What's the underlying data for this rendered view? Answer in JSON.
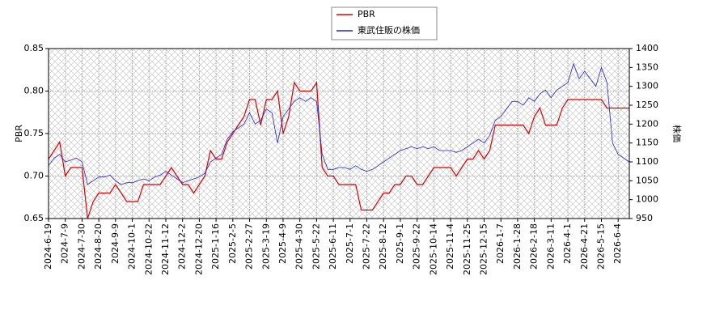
{
  "chart_data": {
    "type": "line",
    "categories": [
      "2024-6-19",
      null,
      null,
      "2024-7-9",
      null,
      null,
      "2024-7-30",
      null,
      null,
      "2024-8-20",
      null,
      null,
      "2024-9-9",
      null,
      null,
      "2024-10-1",
      null,
      null,
      "2024-10-22",
      null,
      null,
      "2024-11-12",
      null,
      null,
      "2024-12-2",
      null,
      null,
      "2024-12-20",
      null,
      null,
      "2025-1-16",
      null,
      null,
      "2025-2-5",
      null,
      null,
      "2025-2-27",
      null,
      null,
      "2025-3-19",
      null,
      null,
      "2025-4-9",
      null,
      null,
      "2025-4-30",
      null,
      null,
      "2025-5-22",
      null,
      null,
      "2025-6-11",
      null,
      null,
      "2025-7-1",
      null,
      null,
      "2025-7-22",
      null,
      null,
      "2025-8-12",
      null,
      null,
      "2025-9-1",
      null,
      null,
      "2025-9-22",
      null,
      null,
      "2025-10-14",
      null,
      null,
      "2025-11-4",
      null,
      null,
      "2025-11-25",
      null,
      null,
      "2025-12-15",
      null,
      null,
      "2026-1-7",
      null,
      null,
      "2026-1-28",
      null,
      null,
      "2026-2-18",
      null,
      null,
      "2026-3-11",
      null,
      null,
      "2026-4-1",
      null,
      null,
      "2026-4-21",
      null,
      null,
      "2026-5-15",
      null,
      null,
      "2026-6-4",
      null,
      null
    ],
    "series": [
      {
        "name": "PBR",
        "color": "#dd0000",
        "values": [
          0.72,
          0.73,
          0.74,
          0.7,
          0.71,
          0.71,
          0.71,
          0.65,
          0.67,
          0.68,
          0.68,
          0.68,
          0.69,
          0.68,
          0.67,
          0.67,
          0.67,
          0.69,
          0.69,
          0.69,
          0.69,
          0.7,
          0.71,
          0.7,
          0.69,
          0.69,
          0.68,
          0.69,
          0.7,
          0.73,
          0.72,
          0.72,
          0.74,
          0.75,
          0.76,
          0.77,
          0.79,
          0.79,
          0.76,
          0.79,
          0.79,
          0.8,
          0.75,
          0.77,
          0.81,
          0.8,
          0.8,
          0.8,
          0.81,
          0.71,
          0.7,
          0.7,
          0.69,
          0.69,
          0.69,
          0.69,
          0.66,
          0.66,
          0.66,
          0.67,
          0.68,
          0.68,
          0.69,
          0.69,
          0.7,
          0.7,
          0.69,
          0.69,
          0.7,
          0.71,
          0.71,
          0.71,
          0.71,
          0.7,
          0.71,
          0.72,
          0.72,
          0.73,
          0.72,
          0.73,
          0.76,
          0.76,
          0.76,
          0.76,
          0.76,
          0.76,
          0.75,
          0.77,
          0.78,
          0.76,
          0.76,
          0.76,
          0.78,
          0.79,
          0.79,
          0.79,
          0.79,
          0.79,
          0.79,
          0.79,
          0.78,
          0.78,
          0.78,
          0.78,
          0.78
        ]
      },
      {
        "name": "東武住販の株価",
        "color": "#2222dd",
        "axis": "y2",
        "values": [
          1090,
          1110,
          1120,
          1100,
          1105,
          1110,
          1100,
          1040,
          1050,
          1060,
          1060,
          1065,
          1050,
          1040,
          1045,
          1045,
          1050,
          1055,
          1050,
          1060,
          1065,
          1075,
          1065,
          1055,
          1045,
          1050,
          1055,
          1060,
          1070,
          1100,
          1110,
          1120,
          1160,
          1180,
          1190,
          1200,
          1230,
          1200,
          1210,
          1240,
          1230,
          1150,
          1220,
          1240,
          1260,
          1270,
          1260,
          1270,
          1260,
          1120,
          1080,
          1080,
          1085,
          1085,
          1080,
          1090,
          1080,
          1075,
          1080,
          1090,
          1100,
          1110,
          1120,
          1130,
          1135,
          1140,
          1135,
          1140,
          1135,
          1140,
          1130,
          1130,
          1130,
          1125,
          1130,
          1140,
          1150,
          1160,
          1150,
          1170,
          1210,
          1220,
          1240,
          1260,
          1260,
          1250,
          1270,
          1260,
          1280,
          1290,
          1270,
          1290,
          1300,
          1310,
          1360,
          1320,
          1340,
          1320,
          1300,
          1350,
          1310,
          1150,
          1120,
          1110,
          1100
        ]
      }
    ],
    "ylabel": "PBR",
    "y2label": "株価",
    "ylim": [
      0.65,
      0.85
    ],
    "yticks": [
      0.65,
      {
        "value": 0.7,
        "label": "0.70"
      },
      0.75,
      {
        "value": 0.8,
        "label": "0.80"
      },
      0.85
    ],
    "y2lim": [
      950,
      1400
    ],
    "y2ticks": [
      950,
      1000,
      1050,
      1100,
      1150,
      1200,
      1250,
      1300,
      1350,
      1400
    ],
    "grid": true
  }
}
